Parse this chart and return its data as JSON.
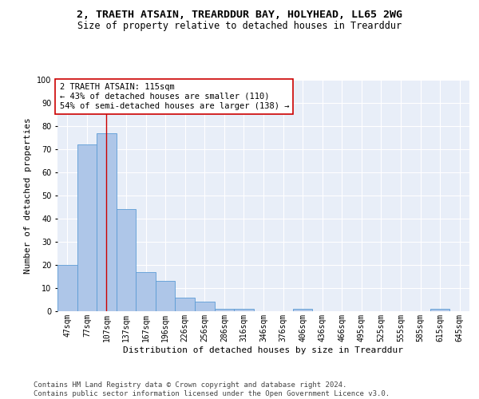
{
  "title": "2, TRAETH ATSAIN, TREARDDUR BAY, HOLYHEAD, LL65 2WG",
  "subtitle": "Size of property relative to detached houses in Trearddur",
  "xlabel": "Distribution of detached houses by size in Trearddur",
  "ylabel": "Number of detached properties",
  "categories": [
    "47sqm",
    "77sqm",
    "107sqm",
    "137sqm",
    "167sqm",
    "196sqm",
    "226sqm",
    "256sqm",
    "286sqm",
    "316sqm",
    "346sqm",
    "376sqm",
    "406sqm",
    "436sqm",
    "466sqm",
    "495sqm",
    "525sqm",
    "555sqm",
    "585sqm",
    "615sqm",
    "645sqm"
  ],
  "values": [
    20,
    72,
    77,
    44,
    17,
    13,
    6,
    4,
    1,
    1,
    0,
    0,
    1,
    0,
    0,
    0,
    0,
    0,
    0,
    1,
    0
  ],
  "bar_color": "#aec6e8",
  "bar_edge_color": "#5b9bd5",
  "vline_x": 2,
  "vline_color": "#cc0000",
  "annotation_text": "2 TRAETH ATSAIN: 115sqm\n← 43% of detached houses are smaller (110)\n54% of semi-detached houses are larger (138) →",
  "annotation_box_color": "#ffffff",
  "annotation_box_edge": "#cc0000",
  "ylim": [
    0,
    100
  ],
  "yticks": [
    0,
    10,
    20,
    30,
    40,
    50,
    60,
    70,
    80,
    90,
    100
  ],
  "background_color": "#e8eef8",
  "footer": "Contains HM Land Registry data © Crown copyright and database right 2024.\nContains public sector information licensed under the Open Government Licence v3.0.",
  "title_fontsize": 9.5,
  "subtitle_fontsize": 8.5,
  "xlabel_fontsize": 8,
  "ylabel_fontsize": 8,
  "annotation_fontsize": 7.5,
  "tick_fontsize": 7,
  "footer_fontsize": 6.5
}
